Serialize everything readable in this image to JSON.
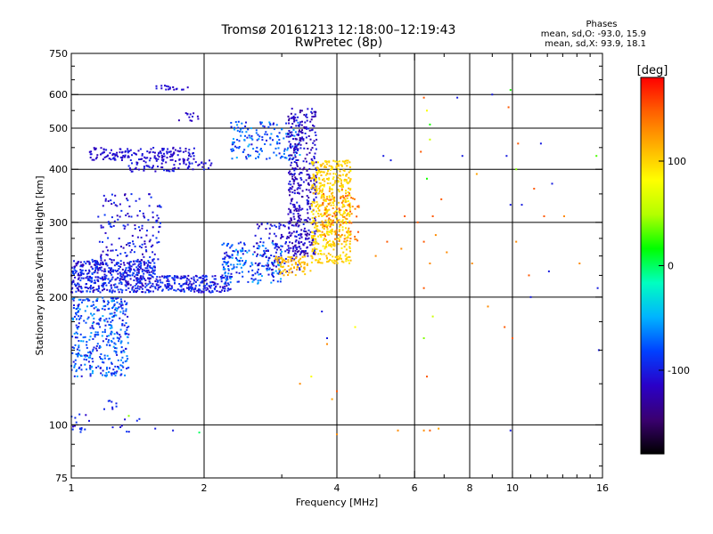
{
  "chart_data": {
    "type": "scatter",
    "title": "Tromsø 20161213 12:18:00–12:19:43",
    "subtitle": "RwPretec (8p)",
    "xlabel": "Frequency [MHz]",
    "ylabel": "Stationary phase Virtual Height [km]",
    "x_scale": "log",
    "y_scale": "log",
    "xlim": [
      1,
      16
    ],
    "ylim": [
      75,
      750
    ],
    "x_ticks": [
      1,
      2,
      4,
      6,
      8,
      10,
      16
    ],
    "x_minor_ticks": [
      3,
      5,
      7,
      9,
      11,
      12,
      13,
      14,
      15
    ],
    "x_gridlines": [
      2,
      4,
      6,
      8,
      10
    ],
    "y_ticks": [
      75,
      100,
      200,
      300,
      400,
      500,
      600,
      750
    ],
    "y_minor_ticks": [
      80,
      90,
      125,
      150,
      175,
      225,
      250,
      275,
      350,
      450,
      550,
      650,
      700
    ],
    "y_gridlines": [
      100,
      200,
      300,
      400,
      500,
      600
    ],
    "grid": true,
    "colorbar": {
      "label": "[deg]",
      "ticks": [
        100,
        0,
        -100
      ],
      "range": [
        -180,
        180
      ],
      "colors": [
        "#000000",
        "#3a0070",
        "#2a00c8",
        "#0040ff",
        "#00b4ff",
        "#00ffc0",
        "#00ff00",
        "#b4ff00",
        "#ffff00",
        "#ffb000",
        "#ff6000",
        "#ff0000"
      ]
    },
    "legend_text": {
      "heading": "Phases",
      "line1": "mean, sd,O:  -93.0,  15.9",
      "line2": "mean, sd,X:   93.9,  18.1"
    },
    "point_clusters": [
      {
        "x": [
          1.0,
          1.55
        ],
        "y": [
          205,
          245
        ],
        "n": 500,
        "phase": -100,
        "spread": 25
      },
      {
        "x": [
          1.0,
          1.35
        ],
        "y": [
          130,
          200
        ],
        "n": 380,
        "phase": -80,
        "spread": 30
      },
      {
        "x": [
          1.55,
          2.3
        ],
        "y": [
          205,
          225
        ],
        "n": 220,
        "phase": -100,
        "spread": 20
      },
      {
        "x": [
          1.15,
          1.6
        ],
        "y": [
          240,
          350
        ],
        "n": 150,
        "phase": -105,
        "spread": 20
      },
      {
        "x": [
          1.1,
          1.9
        ],
        "y": [
          420,
          450
        ],
        "n": 160,
        "phase": -110,
        "spread": 12
      },
      {
        "x": [
          1.35,
          2.1
        ],
        "y": [
          395,
          420
        ],
        "n": 70,
        "phase": -105,
        "spread": 15
      },
      {
        "x": [
          1.55,
          1.85
        ],
        "y": [
          615,
          630
        ],
        "n": 18,
        "phase": -110,
        "spread": 10
      },
      {
        "x": [
          1.75,
          1.95
        ],
        "y": [
          520,
          545
        ],
        "n": 12,
        "phase": -115,
        "spread": 10
      },
      {
        "x": [
          2.3,
          3.3
        ],
        "y": [
          420,
          520
        ],
        "n": 160,
        "phase": -80,
        "spread": 30
      },
      {
        "x": [
          2.2,
          3.0
        ],
        "y": [
          215,
          270
        ],
        "n": 190,
        "phase": -78,
        "spread": 30
      },
      {
        "x": [
          2.6,
          3.3
        ],
        "y": [
          225,
          300
        ],
        "n": 110,
        "phase": -110,
        "spread": 20
      },
      {
        "x": [
          3.1,
          3.6
        ],
        "y": [
          250,
          560
        ],
        "n": 420,
        "phase": -115,
        "spread": 20
      },
      {
        "x": [
          2.9,
          3.5
        ],
        "y": [
          225,
          250
        ],
        "n": 80,
        "phase": 110,
        "spread": 12
      },
      {
        "x": [
          3.5,
          4.3
        ],
        "y": [
          240,
          420
        ],
        "n": 520,
        "phase": 100,
        "spread": 15
      },
      {
        "x": [
          3.7,
          4.5
        ],
        "y": [
          270,
          360
        ],
        "n": 80,
        "phase": 140,
        "spread": 15
      },
      {
        "x": [
          1.0,
          1.1
        ],
        "y": [
          96,
          106
        ],
        "n": 15,
        "phase": -100,
        "spread": 15
      },
      {
        "x": [
          1.15,
          1.3
        ],
        "y": [
          108,
          115
        ],
        "n": 8,
        "phase": -100,
        "spread": 15
      },
      {
        "x": [
          1.2,
          1.45
        ],
        "y": [
          96,
          104
        ],
        "n": 8,
        "phase": -100,
        "spread": 15
      }
    ],
    "scattered_points": [
      [
        6.3,
        590,
        150
      ],
      [
        6.4,
        550,
        80
      ],
      [
        6.5,
        510,
        20
      ],
      [
        6.5,
        470,
        60
      ],
      [
        6.2,
        440,
        150
      ],
      [
        6.4,
        380,
        20
      ],
      [
        6.6,
        310,
        150
      ],
      [
        6.1,
        300,
        150
      ],
      [
        6.3,
        270,
        150
      ],
      [
        6.5,
        240,
        130
      ],
      [
        6.7,
        280,
        130
      ],
      [
        6.3,
        210,
        150
      ],
      [
        6.6,
        180,
        60
      ],
      [
        6.3,
        160,
        40
      ],
      [
        6.4,
        130,
        150
      ],
      [
        7.5,
        590,
        -100
      ],
      [
        7.7,
        430,
        -100
      ],
      [
        8.3,
        390,
        120
      ],
      [
        9.0,
        600,
        -100
      ],
      [
        9.9,
        615,
        20
      ],
      [
        9.8,
        560,
        150
      ],
      [
        9.7,
        430,
        -100
      ],
      [
        9.9,
        330,
        -100
      ],
      [
        10.3,
        460,
        150
      ],
      [
        10.5,
        330,
        -100
      ],
      [
        10.2,
        400,
        40
      ],
      [
        11.2,
        360,
        150
      ],
      [
        11.6,
        460,
        -100
      ],
      [
        12.3,
        370,
        -100
      ],
      [
        10.0,
        160,
        150
      ],
      [
        9.6,
        170,
        150
      ],
      [
        10.9,
        225,
        150
      ],
      [
        11.0,
        200,
        -100
      ],
      [
        11.8,
        310,
        150
      ],
      [
        15.6,
        210,
        -100
      ],
      [
        15.7,
        150,
        -100
      ],
      [
        15.5,
        430,
        30
      ],
      [
        9.9,
        97,
        -100
      ],
      [
        6.3,
        97,
        130
      ],
      [
        6.5,
        97,
        150
      ],
      [
        6.8,
        98,
        120
      ],
      [
        5.5,
        97,
        130
      ],
      [
        5.3,
        420,
        -100
      ],
      [
        5.7,
        310,
        150
      ],
      [
        5.1,
        430,
        -100
      ],
      [
        4.9,
        250,
        130
      ],
      [
        4.4,
        170,
        80
      ],
      [
        4.0,
        120,
        150
      ],
      [
        4.0,
        95,
        130
      ],
      [
        3.8,
        155,
        130
      ],
      [
        3.8,
        160,
        -100
      ],
      [
        3.5,
        130,
        80
      ],
      [
        3.7,
        185,
        -100
      ],
      [
        3.3,
        125,
        130
      ],
      [
        3.9,
        115,
        120
      ],
      [
        1.95,
        96,
        0
      ],
      [
        1.7,
        97,
        -100
      ],
      [
        1.55,
        98,
        -100
      ],
      [
        1.35,
        105,
        40
      ],
      [
        5.2,
        270,
        150
      ],
      [
        5.6,
        260,
        130
      ],
      [
        6.9,
        340,
        150
      ],
      [
        7.1,
        255,
        130
      ],
      [
        8.1,
        240,
        130
      ],
      [
        8.8,
        190,
        130
      ],
      [
        10.2,
        270,
        130
      ],
      [
        12.1,
        230,
        -100
      ],
      [
        14.2,
        240,
        130
      ],
      [
        13.1,
        310,
        130
      ]
    ]
  }
}
